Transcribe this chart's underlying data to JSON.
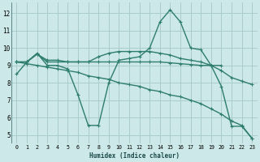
{
  "xlabel": "Humidex (Indice chaleur)",
  "bg_color": "#cce8e8",
  "grid_color": "#aacccc",
  "line_color": "#2e7d6e",
  "xlim": [
    -0.5,
    23.5
  ],
  "ylim": [
    4.5,
    12.6
  ],
  "xticks": [
    0,
    1,
    2,
    3,
    4,
    5,
    6,
    7,
    8,
    9,
    10,
    11,
    12,
    13,
    14,
    15,
    16,
    17,
    18,
    19,
    20,
    21,
    22,
    23
  ],
  "yticks": [
    5,
    6,
    7,
    8,
    9,
    10,
    11,
    12
  ],
  "line1_x": [
    0,
    1,
    2,
    3,
    4,
    5,
    6,
    7,
    8,
    9,
    10,
    11,
    12,
    13,
    14,
    15,
    16,
    17,
    18,
    19,
    20,
    21,
    22,
    23
  ],
  "line1_y": [
    8.5,
    9.2,
    9.7,
    9.0,
    9.0,
    8.8,
    7.3,
    5.55,
    5.55,
    8.0,
    9.3,
    9.4,
    9.5,
    10.0,
    11.5,
    12.2,
    11.5,
    10.0,
    9.9,
    9.0,
    7.8,
    5.5,
    5.5,
    4.8
  ],
  "line2_x": [
    0,
    1,
    2,
    3,
    4,
    5,
    6,
    7,
    8,
    9,
    10,
    11,
    12,
    13,
    14,
    15,
    16,
    17,
    18,
    19,
    20
  ],
  "line2_y": [
    9.2,
    9.2,
    9.65,
    9.2,
    9.2,
    9.2,
    9.2,
    9.2,
    9.2,
    9.2,
    9.2,
    9.2,
    9.2,
    9.2,
    9.2,
    9.15,
    9.1,
    9.05,
    9.0,
    9.0,
    9.0
  ],
  "line3_x": [
    0,
    1,
    2,
    3,
    4,
    5,
    6,
    7,
    8,
    9,
    10,
    11,
    12,
    13,
    14,
    15,
    16,
    17,
    18,
    19,
    20,
    21,
    22,
    23
  ],
  "line3_y": [
    9.2,
    9.2,
    9.65,
    9.3,
    9.3,
    9.2,
    9.2,
    9.2,
    9.5,
    9.7,
    9.8,
    9.8,
    9.8,
    9.8,
    9.7,
    9.6,
    9.4,
    9.3,
    9.2,
    9.0,
    8.7,
    8.3,
    8.1,
    7.9
  ],
  "line4_x": [
    0,
    1,
    2,
    3,
    4,
    5,
    6,
    7,
    8,
    9,
    10,
    11,
    12,
    13,
    14,
    15,
    16,
    17,
    18,
    19,
    20,
    21,
    22,
    23
  ],
  "line4_y": [
    9.2,
    9.1,
    9.0,
    8.9,
    8.8,
    8.7,
    8.6,
    8.4,
    8.3,
    8.2,
    8.0,
    7.9,
    7.8,
    7.6,
    7.5,
    7.3,
    7.2,
    7.0,
    6.8,
    6.5,
    6.2,
    5.8,
    5.55,
    4.8
  ]
}
